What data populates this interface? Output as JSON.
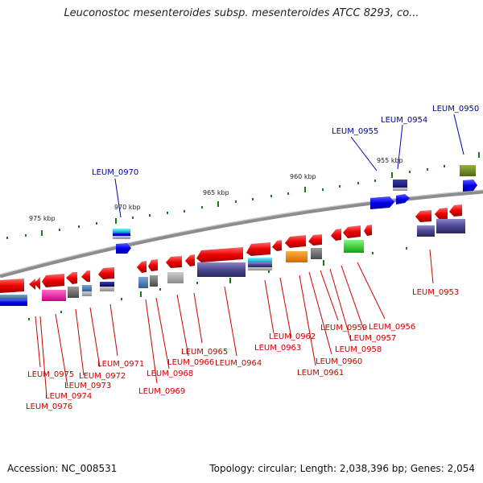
{
  "header": {
    "title": "Leuconostoc mesenteroides subsp. mesenteroides ATCC 8293, co..."
  },
  "footer": {
    "accession": "Accession: NC_008531",
    "stats": "Topology: circular; Length: 2,038,396 bp; Genes: 2,054"
  },
  "scale": [
    "975 kbp",
    "970 kbp",
    "965 kbp",
    "960 kbp",
    "955 kbp"
  ],
  "labels_top": [
    "LEUM_0970",
    "LEUM_0955",
    "LEUM_0954",
    "LEUM_0950"
  ],
  "labels_bottom": [
    "LEUM_0975",
    "LEUM_0974",
    "LEUM_0976",
    "LEUM_0973",
    "LEUM_0972",
    "LEUM_0971",
    "LEUM_0969",
    "LEUM_0968",
    "LEUM_0966",
    "LEUM_0965",
    "LEUM_0964",
    "LEUM_0963",
    "LEUM_0962",
    "LEUM_0961",
    "LEUM_0960",
    "LEUM_0959",
    "LEUM_0958",
    "LEUM_0957",
    "LEUM_0956",
    "LEUM_0953"
  ],
  "colors": {
    "backbone": "#8c8c8c",
    "forward_gene": "#ff0000",
    "label_red": "#cc0000",
    "label_blue": "#0000aa",
    "tick": "#1a7a1a"
  }
}
